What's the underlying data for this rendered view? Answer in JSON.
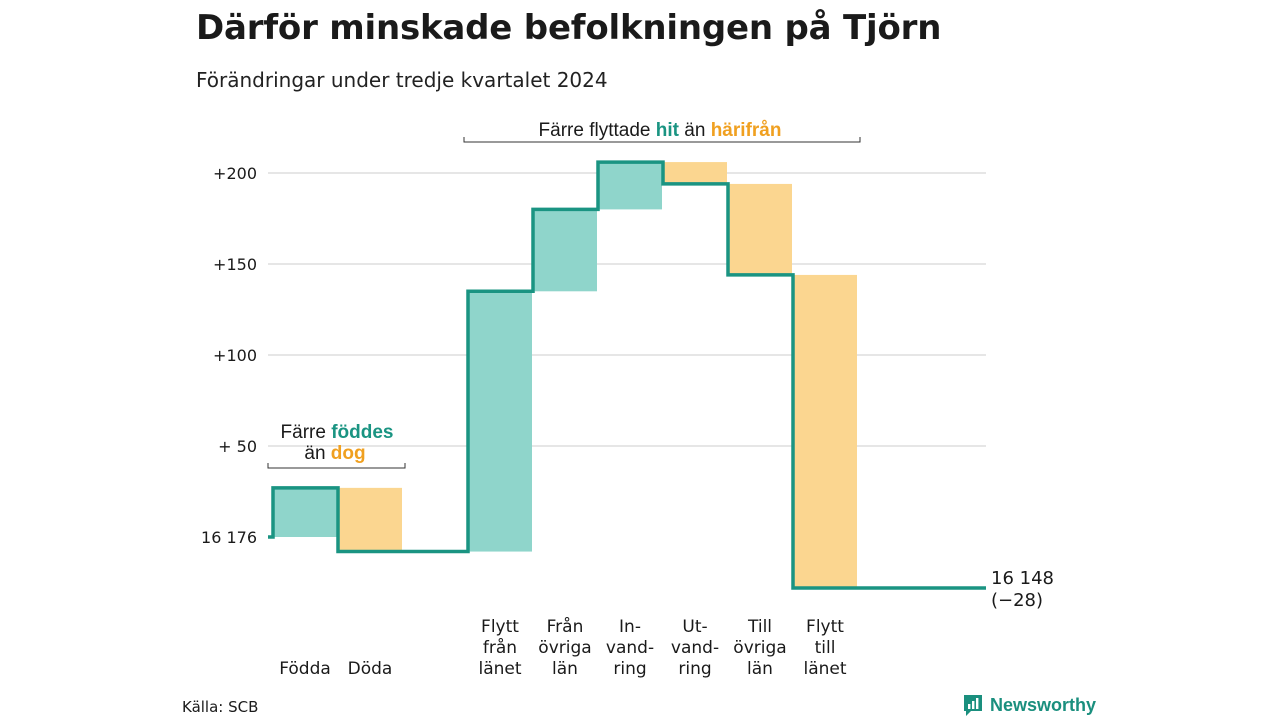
{
  "header": {
    "title": "Därför minskade befolkningen på Tjörn",
    "subtitle": "Förändringar under tredje kvartalet 2024"
  },
  "footer": {
    "source": "Källa: SCB",
    "brand": "Newsworthy"
  },
  "colors": {
    "inflow": "#8fd5cb",
    "outflow": "#fbd690",
    "line": "#1a9482",
    "grid": "#dddddd",
    "highlight_teal": "#1a9482",
    "highlight_orange": "#f0a020"
  },
  "annotations": {
    "births": {
      "line1_pre": "Färre ",
      "line1_hi": "föddes",
      "line2_pre": "än ",
      "line2_hi": "dog"
    },
    "moves": {
      "pre": "Färre flyttade ",
      "hi1": "hit",
      "mid": " än ",
      "hi2": "härifrån"
    }
  },
  "chart_data": {
    "type": "waterfall",
    "title": "Därför minskade befolkningen på Tjörn",
    "subtitle": "Förändringar under tredje kvartalet 2024",
    "start_value": 16176,
    "end_value": 16148,
    "net_change": -28,
    "ylim": [
      -32,
      212
    ],
    "y_ticks": [
      {
        "value": 0,
        "label": "16 176"
      },
      {
        "value": 50,
        "label": "+ 50"
      },
      {
        "value": 100,
        "label": "+100"
      },
      {
        "value": 150,
        "label": "+150"
      },
      {
        "value": 200,
        "label": "+200"
      }
    ],
    "grid": true,
    "steps": [
      {
        "label_lines": [
          "Födda"
        ],
        "change": 27,
        "kind": "inflow"
      },
      {
        "label_lines": [
          "Döda"
        ],
        "change": -35,
        "kind": "outflow"
      },
      {
        "label_lines": [
          "Flytt",
          "från",
          "länet"
        ],
        "change": 143,
        "kind": "inflow"
      },
      {
        "label_lines": [
          "Från",
          "övriga",
          "län"
        ],
        "change": 45,
        "kind": "inflow"
      },
      {
        "label_lines": [
          "In-",
          "vand-",
          "ring"
        ],
        "change": 26,
        "kind": "inflow"
      },
      {
        "label_lines": [
          "Ut-",
          "vand-",
          "ring"
        ],
        "change": -12,
        "kind": "outflow"
      },
      {
        "label_lines": [
          "Till",
          "övriga",
          "län"
        ],
        "change": -50,
        "kind": "outflow"
      },
      {
        "label_lines": [
          "Flytt",
          "till",
          "länet"
        ],
        "change": -172,
        "kind": "outflow"
      }
    ],
    "end_label_lines": [
      "16 148",
      "(−28)"
    ]
  }
}
